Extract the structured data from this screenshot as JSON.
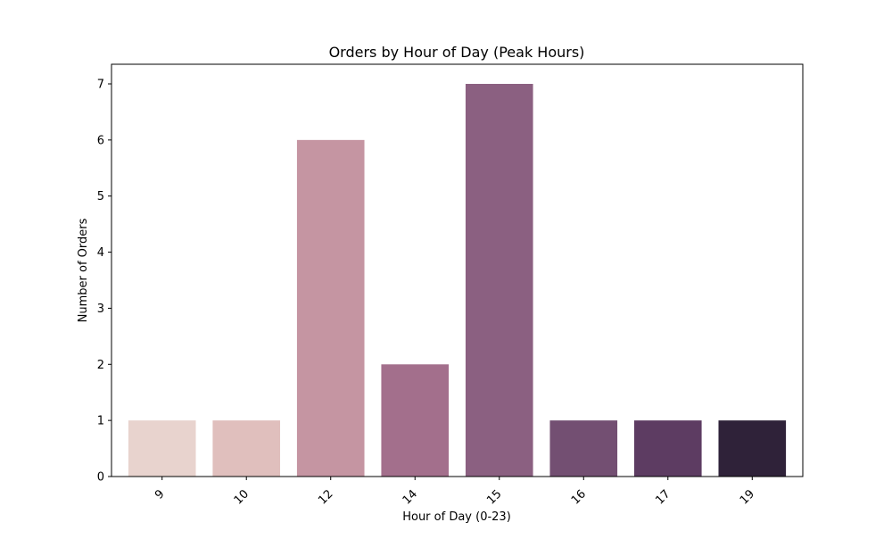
{
  "chart_data": {
    "type": "bar",
    "title": "Orders by Hour of Day (Peak Hours)",
    "xlabel": "Hour of Day (0-23)",
    "ylabel": "Number of Orders",
    "categories": [
      "9",
      "10",
      "12",
      "14",
      "15",
      "16",
      "17",
      "19"
    ],
    "values": [
      1,
      1,
      6,
      2,
      7,
      1,
      1,
      1
    ],
    "ylim": [
      0,
      7.35
    ],
    "yticks": [
      0,
      1,
      2,
      3,
      4,
      5,
      6,
      7
    ],
    "grid": false,
    "legend": "none",
    "x_tick_rotation_deg": 45,
    "bar_colors": [
      "#e8d3ce",
      "#e0bfbd",
      "#c595a2",
      "#a36f8c",
      "#8b6081",
      "#734f72",
      "#5d3c62",
      "#2f2239"
    ]
  }
}
